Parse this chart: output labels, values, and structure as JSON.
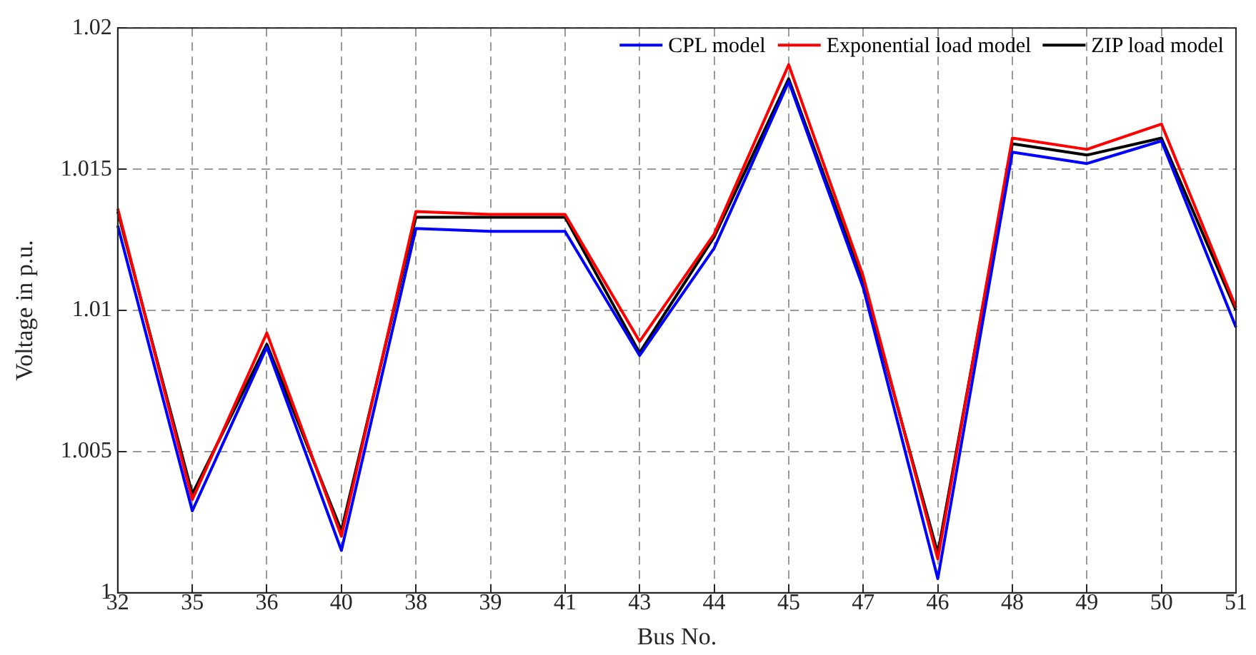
{
  "chart_data": {
    "type": "line",
    "xlabel": "Bus No.",
    "ylabel": "Voltage in p.u.",
    "categories": [
      "32",
      "35",
      "36",
      "40",
      "38",
      "39",
      "41",
      "43",
      "44",
      "45",
      "47",
      "46",
      "48",
      "49",
      "50",
      "51"
    ],
    "series": [
      {
        "name": "CPL model",
        "color": "#0000ff",
        "values": [
          1.013,
          1.0029,
          1.0087,
          1.0015,
          1.0129,
          1.0128,
          1.0128,
          1.0084,
          1.0122,
          1.0181,
          1.0108,
          1.0005,
          1.0156,
          1.0152,
          1.016,
          1.0094
        ]
      },
      {
        "name": "Exponential load model",
        "color": "#ff0000",
        "values": [
          1.0136,
          1.0033,
          1.0092,
          1.002,
          1.0135,
          1.0134,
          1.0134,
          1.0089,
          1.0127,
          1.0187,
          1.0112,
          1.0012,
          1.0161,
          1.0157,
          1.0166,
          1.0101
        ]
      },
      {
        "name": "ZIP load model",
        "color": "#000000",
        "values": [
          1.0135,
          1.0035,
          1.0088,
          1.0022,
          1.0133,
          1.0133,
          1.0133,
          1.0085,
          1.0126,
          1.0182,
          1.011,
          1.0014,
          1.0159,
          1.0155,
          1.0161,
          1.01
        ]
      }
    ],
    "ylim": [
      1,
      1.02
    ],
    "yticks": [
      1,
      1.005,
      1.01,
      1.015,
      1.02
    ],
    "grid": true,
    "legend": "top right",
    "marker": "none",
    "line_style": "solid"
  }
}
